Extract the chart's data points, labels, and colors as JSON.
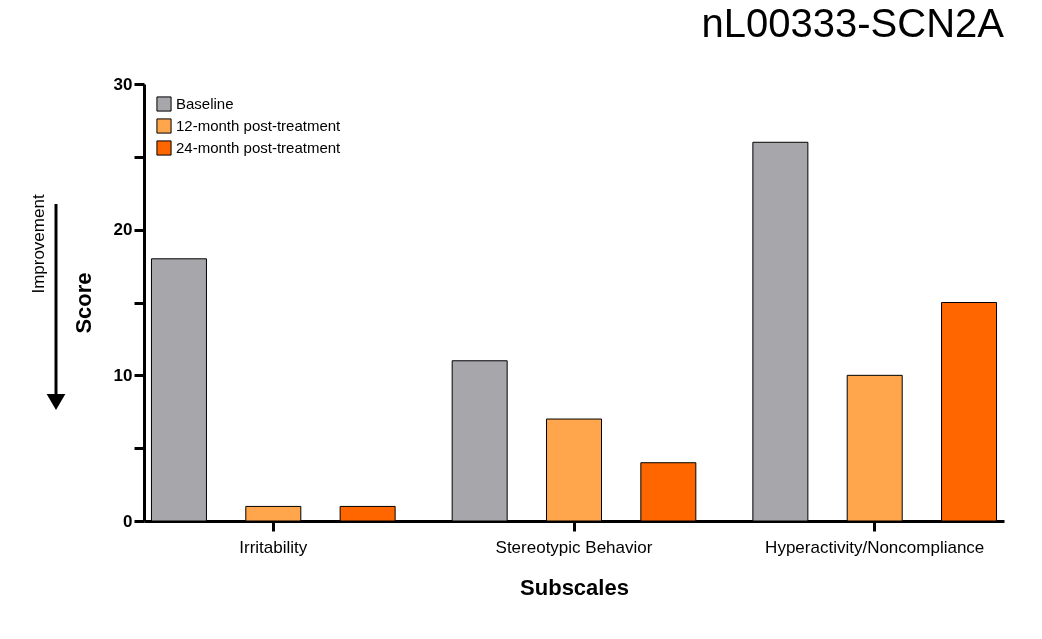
{
  "chart_data": {
    "type": "bar",
    "title": "nL00333-SCN2A",
    "xlabel": "Subscales",
    "ylabel": "Score",
    "annotations": [
      "Improvement"
    ],
    "categories": [
      "Irritability",
      "Stereotypic Behavior",
      "Hyperactivity/Noncompliance"
    ],
    "series": [
      {
        "name": "Baseline",
        "color": "#a7a6ab",
        "values": [
          18,
          11,
          26
        ]
      },
      {
        "name": "12-month post-treatment",
        "color": "#ffa64d",
        "values": [
          1,
          7,
          10
        ]
      },
      {
        "name": "24-month post-treatment",
        "color": "#ff6600",
        "values": [
          1,
          4,
          15
        ]
      }
    ],
    "ylim": [
      0,
      30
    ],
    "yticks": [
      0,
      {
        "value": 5,
        "label": null
      },
      10,
      {
        "value": 15,
        "label": null
      },
      20,
      {
        "value": 25,
        "label": null
      },
      30
    ],
    "grid": false,
    "legend": "top left"
  }
}
